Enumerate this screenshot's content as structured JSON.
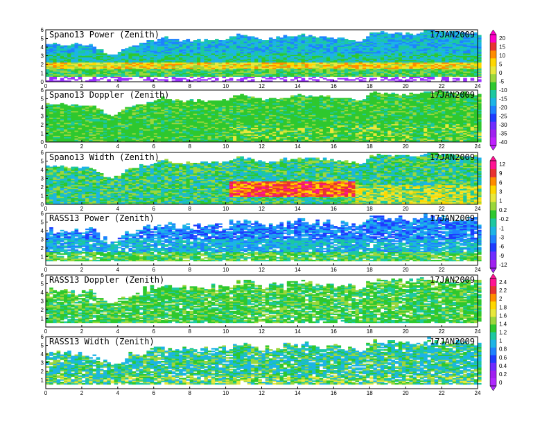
{
  "chart_data": [
    {
      "type": "heatmap",
      "title": "Spano13 Power (Zenith)",
      "date": "17JAN2009",
      "xlim": [
        0,
        24
      ],
      "ylim": [
        0,
        6
      ],
      "x_ticks": [
        "0",
        "2",
        "4",
        "6",
        "8",
        "10",
        "12",
        "14",
        "16",
        "18",
        "20",
        "22",
        "24"
      ],
      "y_ticks": [
        "0",
        "1",
        "2",
        "3",
        "4",
        "5",
        "6"
      ],
      "colorbar_ticks": [
        "20",
        "15",
        "10",
        "5",
        "0",
        "-5",
        "-10",
        "-15",
        "-20",
        "-25",
        "-30",
        "-35",
        "-40"
      ]
    },
    {
      "type": "heatmap",
      "title": "Spano13 Doppler (Zenith)",
      "date": "17JAN2009",
      "xlim": [
        0,
        24
      ],
      "ylim": [
        0,
        6
      ],
      "x_ticks": [
        "0",
        "2",
        "4",
        "6",
        "8",
        "10",
        "12",
        "14",
        "16",
        "18",
        "20",
        "22",
        "24"
      ],
      "y_ticks": [
        "0",
        "1",
        "2",
        "3",
        "4",
        "5",
        "6"
      ]
    },
    {
      "type": "heatmap",
      "title": "Spano13 Width (Zenith)",
      "date": "17JAN2009",
      "xlim": [
        0,
        24
      ],
      "ylim": [
        0,
        6
      ],
      "x_ticks": [
        "0",
        "2",
        "4",
        "6",
        "8",
        "10",
        "12",
        "14",
        "16",
        "18",
        "20",
        "22",
        "24"
      ],
      "y_ticks": [
        "0",
        "1",
        "2",
        "3",
        "4",
        "5",
        "6"
      ],
      "colorbar_ticks": [
        "12",
        "9",
        "6",
        "3",
        "1",
        "0.2",
        "-0.2",
        "-1",
        "-3",
        "-6",
        "-9",
        "-12"
      ]
    },
    {
      "type": "heatmap",
      "title": "RASS13 Power (Zenith)",
      "date": "17JAN2009",
      "xlim": [
        0,
        24
      ],
      "ylim": [
        0,
        6
      ],
      "x_ticks": [
        "0",
        "2",
        "4",
        "6",
        "8",
        "10",
        "12",
        "14",
        "16",
        "18",
        "20",
        "22",
        "24"
      ],
      "y_ticks": [
        "1",
        "2",
        "3",
        "4",
        "5",
        "6"
      ]
    },
    {
      "type": "heatmap",
      "title": "RASS13 Doppler (Zenith)",
      "date": "17JAN2009",
      "xlim": [
        0,
        24
      ],
      "ylim": [
        0,
        6
      ],
      "x_ticks": [
        "0",
        "2",
        "4",
        "6",
        "8",
        "10",
        "12",
        "14",
        "16",
        "18",
        "20",
        "22",
        "24"
      ],
      "y_ticks": [
        "1",
        "2",
        "3",
        "4",
        "5",
        "6"
      ],
      "colorbar_ticks": [
        "2.4",
        "2.2",
        "2",
        "1.8",
        "1.6",
        "1.4",
        "1.2",
        "1",
        "0.8",
        "0.6",
        "0.4",
        "0.2",
        "0"
      ]
    },
    {
      "type": "heatmap",
      "title": "RASS13 Width (Zenith)",
      "date": "17JAN2009",
      "xlim": [
        0,
        24
      ],
      "ylim": [
        0,
        6
      ],
      "x_ticks": [
        "0",
        "2",
        "4",
        "6",
        "8",
        "10",
        "12",
        "14",
        "16",
        "18",
        "20",
        "22",
        "24"
      ],
      "y_ticks": [
        "1",
        "2",
        "3",
        "4",
        "5",
        "6"
      ]
    }
  ]
}
